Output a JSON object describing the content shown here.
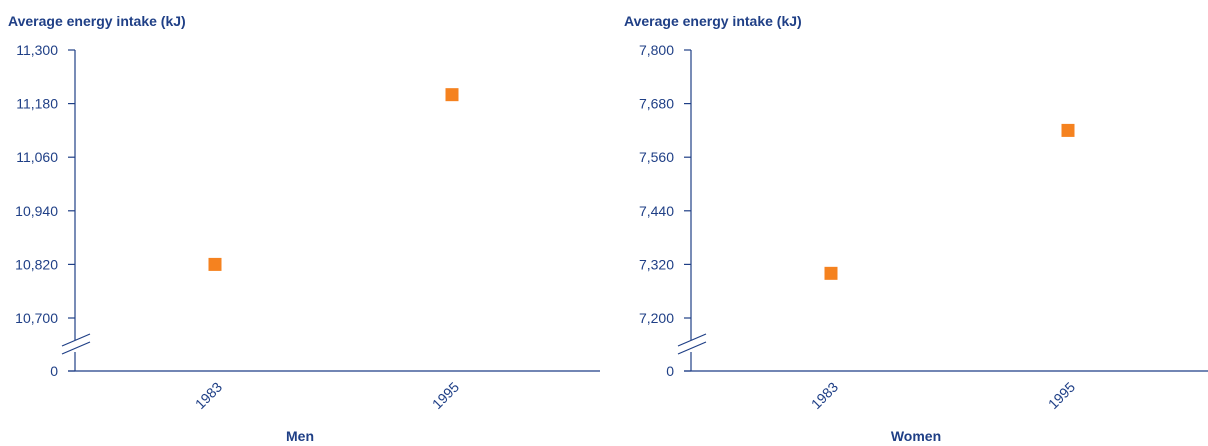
{
  "colors": {
    "axis": "#1f3f86",
    "marker": "#f5821f"
  },
  "chart_data": [
    {
      "type": "scatter",
      "title": "",
      "ylabel": "Average energy intake (kJ)",
      "xlabel": "Men",
      "categories": [
        "1983",
        "1995"
      ],
      "values": [
        10820,
        11200
      ],
      "y_ticks": [
        "0",
        "10,700",
        "10,820",
        "10,940",
        "11,060",
        "11,180",
        "11,300"
      ],
      "y_tick_values": [
        10700,
        10820,
        10940,
        11060,
        11180,
        11300
      ],
      "ylim": [
        10700,
        11300
      ],
      "axis_break": true,
      "grid": false
    },
    {
      "type": "scatter",
      "title": "",
      "ylabel": "Average energy intake (kJ)",
      "xlabel": "Women",
      "categories": [
        "1983",
        "1995"
      ],
      "values": [
        7300,
        7620
      ],
      "y_ticks": [
        "0",
        "7,200",
        "7,320",
        "7,440",
        "7,560",
        "7,680",
        "7,800"
      ],
      "y_tick_values": [
        7200,
        7320,
        7440,
        7560,
        7680,
        7800
      ],
      "ylim": [
        7200,
        7800
      ],
      "axis_break": true,
      "grid": false
    }
  ]
}
